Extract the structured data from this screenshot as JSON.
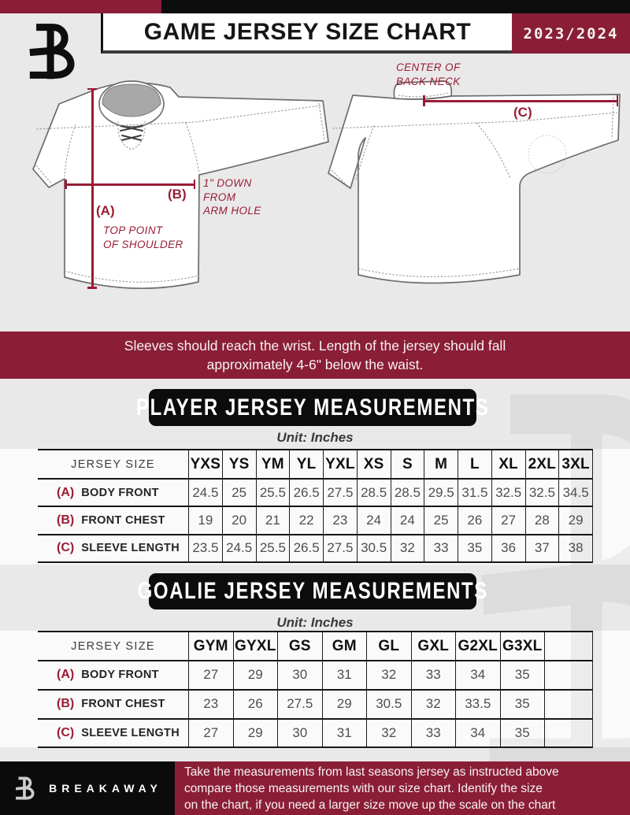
{
  "header": {
    "logo": "B",
    "title": "GAME JERSEY SIZE CHART",
    "season": "2023/2024"
  },
  "diagram": {
    "front": {
      "a_key": "(A)",
      "a_caption": [
        "TOP POINT",
        "OF SHOULDER"
      ],
      "b_key": "(B)",
      "b_caption": [
        "1\" DOWN",
        "FROM",
        "ARM HOLE"
      ]
    },
    "back": {
      "c_key": "(C)",
      "caption": [
        "CENTER OF",
        "BACK NECK"
      ]
    }
  },
  "notice": {
    "lines": [
      "Sleeves should reach the wrist. Length of the jersey should fall",
      "approximately 4-6\" below the waist."
    ]
  },
  "player_table": {
    "title": "PLAYER JERSEY MEASUREMENTS",
    "unit": "Unit: Inches",
    "row_header": "JERSEY SIZE",
    "sizes": [
      "YXS",
      "YS",
      "YM",
      "YL",
      "YXL",
      "XS",
      "S",
      "M",
      "L",
      "XL",
      "2XL",
      "3XL"
    ],
    "rows": [
      {
        "key": "(A)",
        "label": "BODY FRONT",
        "values": [
          "24.5",
          "25",
          "25.5",
          "26.5",
          "27.5",
          "28.5",
          "28.5",
          "29.5",
          "31.5",
          "32.5",
          "32.5",
          "34.5"
        ]
      },
      {
        "key": "(B)",
        "label": "FRONT CHEST",
        "values": [
          "19",
          "20",
          "21",
          "22",
          "23",
          "24",
          "24",
          "25",
          "26",
          "27",
          "28",
          "29"
        ]
      },
      {
        "key": "(C)",
        "label": "SLEEVE LENGTH",
        "values": [
          "23.5",
          "24.5",
          "25.5",
          "26.5",
          "27.5",
          "30.5",
          "32",
          "33",
          "35",
          "36",
          "37",
          "38"
        ]
      }
    ]
  },
  "goalie_table": {
    "title": "GOALIE JERSEY MEASUREMENTS",
    "unit": "Unit: Inches",
    "row_header": "JERSEY SIZE",
    "sizes": [
      "GYM",
      "GYXL",
      "GS",
      "GM",
      "GL",
      "GXL",
      "G2XL",
      "G3XL",
      ""
    ],
    "rows": [
      {
        "key": "(A)",
        "label": "BODY FRONT",
        "values": [
          "27",
          "29",
          "30",
          "31",
          "32",
          "33",
          "34",
          "35",
          ""
        ]
      },
      {
        "key": "(B)",
        "label": "FRONT CHEST",
        "values": [
          "23",
          "26",
          "27.5",
          "29",
          "30.5",
          "32",
          "33.5",
          "35",
          ""
        ]
      },
      {
        "key": "(C)",
        "label": "SLEEVE LENGTH",
        "values": [
          "27",
          "29",
          "30",
          "31",
          "32",
          "33",
          "34",
          "35",
          ""
        ]
      }
    ]
  },
  "footer": {
    "logo": "B",
    "brand": "BREAKAWAY",
    "lines": [
      "Take the measurements from last seasons jersey as instructed above",
      "compare those measurements  with our size chart. Identify the size",
      "on the chart, if you need a larger size move up the scale on the chart"
    ]
  },
  "colors": {
    "maroon": "#8a1e37",
    "accent": "#9a1c35",
    "black": "#0d0d0d"
  }
}
